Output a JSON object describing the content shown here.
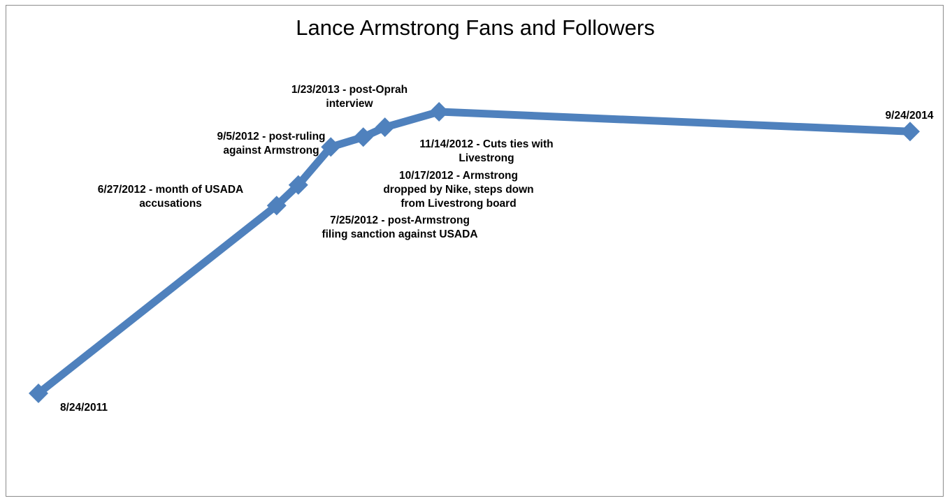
{
  "chart_data": {
    "type": "line",
    "title": "Lance Armstrong Fans and Followers",
    "xlabel": "",
    "ylabel": "",
    "grid": false,
    "legend": "none",
    "line_color": "#4f81bd",
    "series": [
      {
        "points": [
          {
            "x": "8/24/2011",
            "y": 0,
            "label": [
              "8/24/2011"
            ]
          },
          {
            "x": "6/27/2012",
            "y": 0.667,
            "label": [
              "6/27/2012  -  month of USADA",
              "accusations"
            ]
          },
          {
            "x": "7/25/2012",
            "y": 0.74,
            "label": [
              "7/25/2012  -  post-Armstrong",
              "filing sanction against USADA"
            ]
          },
          {
            "x": "9/5/2012",
            "y": 0.875,
            "label": [
              "9/5/2012  -  post-ruling",
              "against Armstrong"
            ]
          },
          {
            "x": "10/17/2012",
            "y": 0.91,
            "label": [
              "10/17/2012  -  Armstrong",
              "dropped by Nike, steps down",
              "from Livestrong board"
            ]
          },
          {
            "x": "11/14/2012",
            "y": 0.945,
            "label": [
              "11/14/2012  -  Cuts ties with",
              "Livestrong"
            ]
          },
          {
            "x": "1/23/2013",
            "y": 1.0,
            "label": [
              "1/23/2013  -  post-Oprah",
              "interview"
            ]
          },
          {
            "x": "9/24/2014",
            "y": 0.93,
            "label": [
              "9/24/2014"
            ]
          }
        ]
      }
    ]
  }
}
